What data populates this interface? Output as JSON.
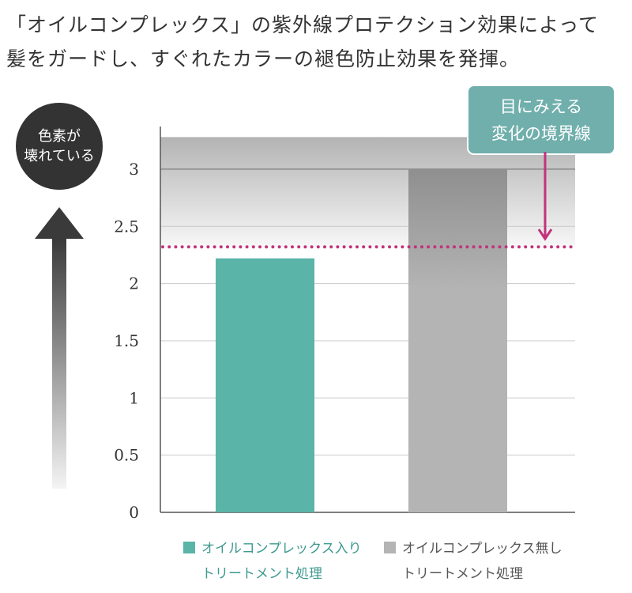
{
  "title_lines": [
    "「オイルコンプレックス」の紫外線プロテクション効果によって",
    "髪をガードし、すぐれたカラーの褪色防止効果を発揮。"
  ],
  "side_label": [
    "色素が",
    "壊れている"
  ],
  "callout": [
    "目にみえる",
    "変化の境界線"
  ],
  "colors": {
    "green": "#5ab4a8",
    "gray": "#b4b4b4",
    "callout": "#70afac",
    "pink": "#c2337b",
    "dark": "#333333"
  },
  "chart_data": {
    "type": "bar",
    "categories": [
      "オイルコンプレックス入り トリートメント処理",
      "オイルコンプレックス無し トリートメント処理"
    ],
    "values": [
      2.22,
      3.0
    ],
    "ylim": [
      0,
      3.28
    ],
    "yticks": [
      "0",
      "0.5",
      "1",
      "1.5",
      "2",
      "2.5",
      "3"
    ],
    "threshold": 2.32,
    "threshold_label": "目にみえる変化の境界線",
    "grid": true,
    "legend": [
      {
        "lines": [
          "オイルコンプレックス入り",
          "トリートメント処理"
        ],
        "color": "#5ab4a8"
      },
      {
        "lines": [
          "オイルコンプレックス無し",
          "トリートメント処理"
        ],
        "color": "#b4b4b4"
      }
    ],
    "legend_position": "bottom"
  }
}
